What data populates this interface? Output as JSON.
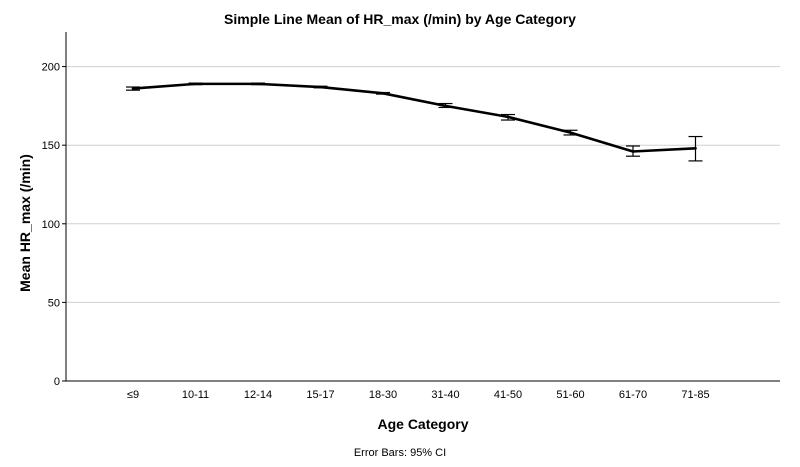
{
  "chart_data": {
    "type": "line",
    "title": "Simple Line Mean of HR_max (/min) by Age Category",
    "xlabel": "Age Category",
    "ylabel": "Mean HR_max (/min)",
    "footnote": "Error Bars: 95% CI",
    "categories": [
      "≤9",
      "10-11",
      "12-14",
      "15-17",
      "18-30",
      "31-40",
      "41-50",
      "51-60",
      "61-70",
      "71-85"
    ],
    "series": [
      {
        "values": [
          186,
          189,
          189,
          187,
          183,
          175,
          168,
          158,
          146,
          148
        ],
        "ci_low": [
          185,
          188.5,
          188.5,
          186.5,
          182.5,
          174,
          166,
          156.5,
          143,
          140
        ],
        "ci_high": [
          187,
          189.5,
          189.5,
          187.5,
          183.5,
          176.5,
          169.5,
          159.5,
          149.5,
          155.5
        ]
      }
    ],
    "ylim": [
      0,
      222
    ],
    "yticks": [
      0,
      50,
      100,
      150,
      200
    ],
    "grid": true,
    "colors": {
      "line": "#000000",
      "grid": "#d0d0d0",
      "axis": "#000000"
    }
  }
}
